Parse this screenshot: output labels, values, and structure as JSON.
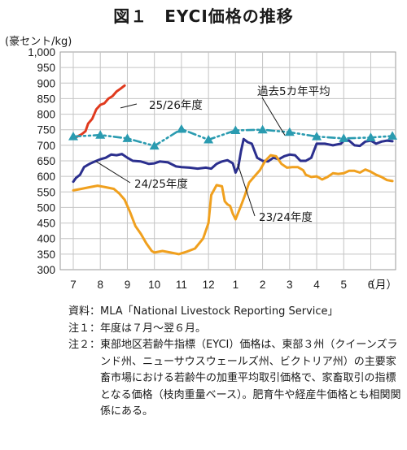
{
  "title": "図１　EYCI価格の推移",
  "chart_data": {
    "type": "line",
    "unit_label": "(豪セント/kg)",
    "ylim": [
      300,
      1000
    ],
    "y_ticks": [
      "300",
      "350",
      "400",
      "450",
      "500",
      "550",
      "600",
      "650",
      "700",
      "750",
      "800",
      "850",
      "900",
      "950",
      "1,000"
    ],
    "x_ticks": [
      "7",
      "8",
      "9",
      "10",
      "11",
      "12",
      "1",
      "2",
      "3",
      "4",
      "5",
      "6"
    ],
    "x_unit": "（月）",
    "grid": true,
    "colors": {
      "s2526": "#e03a1e",
      "s2425": "#2b2f8e",
      "s2324": "#f0a01e",
      "avg": "#2a9bb0"
    },
    "series": [
      {
        "name": "25/26年度",
        "key": "s2526",
        "points": [
          [
            0,
            722
          ],
          [
            0.15,
            728
          ],
          [
            0.3,
            735
          ],
          [
            0.45,
            745
          ],
          [
            0.55,
            770
          ],
          [
            0.7,
            785
          ],
          [
            0.85,
            815
          ],
          [
            1.0,
            830
          ],
          [
            1.15,
            835
          ],
          [
            1.3,
            850
          ],
          [
            1.45,
            858
          ],
          [
            1.6,
            873
          ],
          [
            1.75,
            882
          ],
          [
            1.9,
            892
          ]
        ]
      },
      {
        "name": "24/25年度",
        "key": "s2425",
        "points": [
          [
            0,
            583
          ],
          [
            0.1,
            595
          ],
          [
            0.25,
            605
          ],
          [
            0.4,
            630
          ],
          [
            0.6,
            640
          ],
          [
            0.8,
            648
          ],
          [
            1.0,
            655
          ],
          [
            1.2,
            660
          ],
          [
            1.4,
            670
          ],
          [
            1.6,
            668
          ],
          [
            1.8,
            672
          ],
          [
            2.0,
            660
          ],
          [
            2.2,
            650
          ],
          [
            2.5,
            648
          ],
          [
            2.8,
            640
          ],
          [
            3.0,
            642
          ],
          [
            3.2,
            648
          ],
          [
            3.5,
            645
          ],
          [
            3.8,
            632
          ],
          [
            4.0,
            630
          ],
          [
            4.3,
            628
          ],
          [
            4.6,
            625
          ],
          [
            4.9,
            628
          ],
          [
            5.1,
            625
          ],
          [
            5.3,
            640
          ],
          [
            5.5,
            648
          ],
          [
            5.7,
            652
          ],
          [
            5.9,
            642
          ],
          [
            6.0,
            612
          ],
          [
            6.1,
            630
          ],
          [
            6.2,
            680
          ],
          [
            6.3,
            720
          ],
          [
            6.45,
            710
          ],
          [
            6.6,
            705
          ],
          [
            6.8,
            660
          ],
          [
            7.0,
            650
          ],
          [
            7.2,
            648
          ],
          [
            7.4,
            660
          ],
          [
            7.6,
            655
          ],
          [
            7.8,
            665
          ],
          [
            8.0,
            670
          ],
          [
            8.2,
            668
          ],
          [
            8.4,
            650
          ],
          [
            8.6,
            650
          ],
          [
            8.8,
            660
          ],
          [
            9.0,
            705
          ],
          [
            9.3,
            705
          ],
          [
            9.6,
            700
          ],
          [
            9.9,
            705
          ],
          [
            10.0,
            715
          ],
          [
            10.2,
            715
          ],
          [
            10.4,
            700
          ],
          [
            10.6,
            698
          ],
          [
            10.8,
            712
          ],
          [
            11.0,
            715
          ],
          [
            11.2,
            705
          ],
          [
            11.4,
            712
          ],
          [
            11.6,
            715
          ],
          [
            11.8,
            713
          ]
        ]
      },
      {
        "name": "23/24年度",
        "key": "s2324",
        "points": [
          [
            0,
            555
          ],
          [
            0.3,
            560
          ],
          [
            0.6,
            565
          ],
          [
            0.9,
            570
          ],
          [
            1.2,
            565
          ],
          [
            1.5,
            560
          ],
          [
            1.7,
            545
          ],
          [
            1.9,
            525
          ],
          [
            2.1,
            485
          ],
          [
            2.3,
            440
          ],
          [
            2.5,
            415
          ],
          [
            2.7,
            385
          ],
          [
            2.9,
            360
          ],
          [
            3.0,
            355
          ],
          [
            3.3,
            360
          ],
          [
            3.6,
            355
          ],
          [
            3.9,
            350
          ],
          [
            4.2,
            358
          ],
          [
            4.5,
            368
          ],
          [
            4.8,
            400
          ],
          [
            5.0,
            450
          ],
          [
            5.1,
            540
          ],
          [
            5.3,
            572
          ],
          [
            5.5,
            568
          ],
          [
            5.6,
            520
          ],
          [
            5.7,
            510
          ],
          [
            5.8,
            505
          ],
          [
            5.9,
            480
          ],
          [
            6.0,
            462
          ],
          [
            6.2,
            505
          ],
          [
            6.35,
            540
          ],
          [
            6.5,
            580
          ],
          [
            6.7,
            600
          ],
          [
            6.9,
            620
          ],
          [
            7.1,
            650
          ],
          [
            7.3,
            668
          ],
          [
            7.5,
            665
          ],
          [
            7.7,
            640
          ],
          [
            7.9,
            628
          ],
          [
            8.1,
            630
          ],
          [
            8.3,
            630
          ],
          [
            8.5,
            620
          ],
          [
            8.6,
            605
          ],
          [
            8.8,
            598
          ],
          [
            9.0,
            600
          ],
          [
            9.2,
            590
          ],
          [
            9.4,
            598
          ],
          [
            9.6,
            610
          ],
          [
            9.8,
            608
          ],
          [
            10.0,
            610
          ],
          [
            10.2,
            618
          ],
          [
            10.4,
            618
          ],
          [
            10.6,
            612
          ],
          [
            10.8,
            622
          ],
          [
            11.0,
            615
          ],
          [
            11.2,
            605
          ],
          [
            11.4,
            598
          ],
          [
            11.6,
            588
          ],
          [
            11.8,
            585
          ]
        ]
      },
      {
        "name": "過去5カ年平均",
        "key": "avg",
        "markers": true,
        "points": [
          [
            0,
            728
          ],
          [
            1,
            733
          ],
          [
            2,
            722
          ],
          [
            3,
            698
          ],
          [
            4,
            752
          ],
          [
            5,
            718
          ],
          [
            6,
            748
          ],
          [
            7,
            750
          ],
          [
            8,
            742
          ],
          [
            9,
            728
          ],
          [
            10,
            722
          ],
          [
            11,
            725
          ],
          [
            11.8,
            730
          ]
        ]
      }
    ],
    "annotations": [
      {
        "text": "25/26年度",
        "series": "s2526"
      },
      {
        "text": "過去5カ年平均",
        "series": "avg"
      },
      {
        "text": "24/25年度",
        "series": "s2425"
      },
      {
        "text": "23/24年度",
        "series": "s2324"
      }
    ]
  },
  "notes": [
    {
      "key": "資料：",
      "text": "MLA「National Livestock Reporting Service」"
    },
    {
      "key": "注１：",
      "text": "年度は７月～翌６月。"
    },
    {
      "key": "注２：",
      "text": "東部地区若齢牛指標（EYCI）価格は、東部３州（クイーンズランド州、ニューサウスウェールズ州、ビクトリア州）の主要家畜市場における若齢牛の加重平均取引価格で、家畜取引の指標となる価格（枝肉重量ベース）。肥育牛や経産牛価格とも相関関係にある。"
    }
  ]
}
